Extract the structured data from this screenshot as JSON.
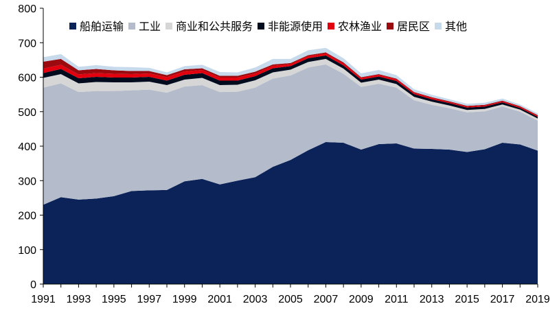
{
  "chart_data": {
    "type": "area",
    "stacked": true,
    "title": "",
    "xlabel": "",
    "ylabel": "",
    "ylim": [
      0,
      800
    ],
    "yticks": [
      0,
      100,
      200,
      300,
      400,
      500,
      600,
      700,
      800
    ],
    "xtick_labels": [
      "1991",
      "1993",
      "1995",
      "1997",
      "1999",
      "2001",
      "2003",
      "2005",
      "2007",
      "2009",
      "2011",
      "2013",
      "2015",
      "2017",
      "2019"
    ],
    "legend_position": "top-right",
    "grid": false,
    "x": [
      1991,
      1992,
      1993,
      1994,
      1995,
      1996,
      1997,
      1998,
      1999,
      2000,
      2001,
      2002,
      2003,
      2004,
      2005,
      2006,
      2007,
      2008,
      2009,
      2010,
      2011,
      2012,
      2013,
      2014,
      2015,
      2016,
      2017,
      2018,
      2019
    ],
    "series": [
      {
        "name": "船舶运输",
        "color": "#0c2359",
        "values": [
          230,
          252,
          245,
          248,
          255,
          270,
          272,
          273,
          298,
          305,
          289,
          300,
          310,
          340,
          360,
          388,
          412,
          410,
          390,
          406,
          408,
          393,
          392,
          390,
          383,
          391,
          410,
          405,
          387
        ]
      },
      {
        "name": "工业",
        "color": "#b4bccb",
        "values": [
          340,
          330,
          312,
          312,
          305,
          292,
          292,
          282,
          275,
          272,
          268,
          258,
          260,
          256,
          245,
          240,
          225,
          200,
          182,
          175,
          162,
          140,
          128,
          120,
          115,
          110,
          105,
          95,
          87
        ]
      },
      {
        "name": "商业和公共服务",
        "color": "#d6d6d6",
        "values": [
          28,
          27,
          25,
          26,
          25,
          23,
          23,
          22,
          20,
          21,
          20,
          20,
          21,
          18,
          17,
          16,
          16,
          15,
          12,
          12,
          10,
          10,
          9,
          8,
          7,
          7,
          6,
          6,
          6
        ]
      },
      {
        "name": "非能源使用",
        "color": "#000b1e",
        "values": [
          14,
          15,
          15,
          15,
          14,
          14,
          14,
          13,
          14,
          14,
          13,
          12,
          12,
          12,
          10,
          11,
          10,
          9,
          9,
          9,
          9,
          8,
          7,
          7,
          7,
          7,
          6,
          5,
          5
        ]
      },
      {
        "name": "农林渔业",
        "color": "#e3000e",
        "values": [
          13,
          12,
          11,
          11,
          11,
          10,
          10,
          10,
          10,
          9,
          9,
          9,
          8,
          7,
          6,
          6,
          6,
          6,
          5,
          5,
          5,
          4,
          4,
          3,
          3,
          3,
          3,
          3,
          3
        ]
      },
      {
        "name": "居民区",
        "color": "#9a0a0f",
        "values": [
          20,
          17,
          12,
          12,
          10,
          9,
          7,
          6,
          6,
          5,
          5,
          5,
          5,
          4,
          3,
          3,
          3,
          3,
          2,
          2,
          2,
          2,
          2,
          2,
          2,
          2,
          2,
          2,
          2
        ]
      },
      {
        "name": "其他",
        "color": "#c6daec",
        "values": [
          13,
          14,
          10,
          11,
          10,
          11,
          9,
          8,
          9,
          10,
          11,
          10,
          12,
          16,
          12,
          14,
          13,
          12,
          11,
          12,
          10,
          8,
          7,
          6,
          6,
          6,
          6,
          5,
          5
        ]
      }
    ]
  }
}
